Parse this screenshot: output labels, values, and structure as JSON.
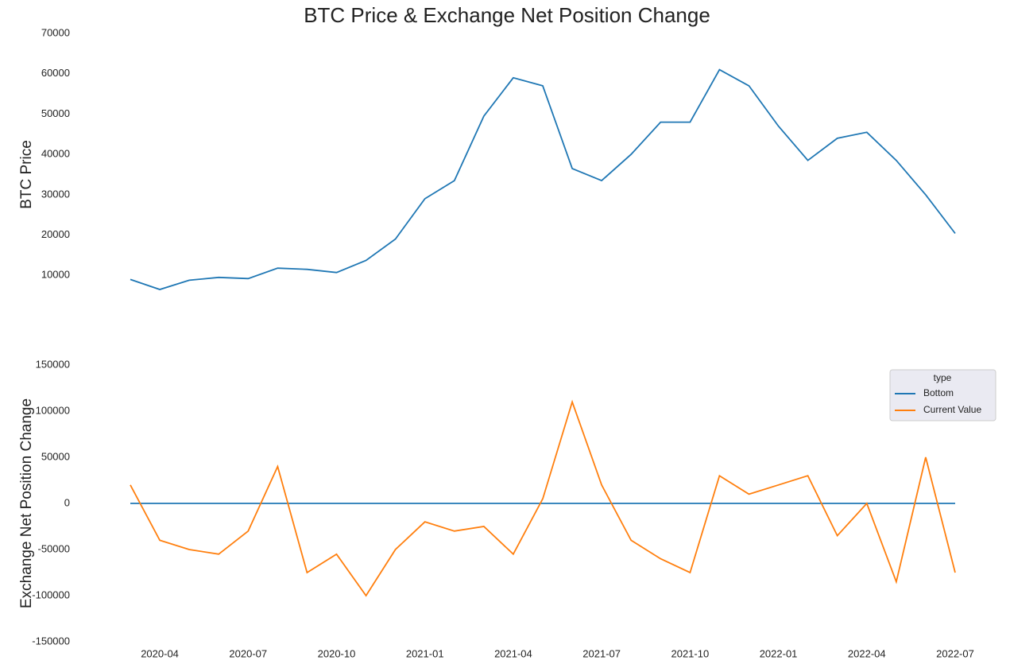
{
  "title": "BTC Price & Exchange Net Position Change",
  "chart_data": [
    {
      "type": "line",
      "ylabel": "BTC  Price",
      "x": [
        "2020-03",
        "2020-04",
        "2020-05",
        "2020-06",
        "2020-07",
        "2020-08",
        "2020-09",
        "2020-10",
        "2020-11",
        "2020-12",
        "2021-01",
        "2021-02",
        "2021-03",
        "2021-04",
        "2021-05",
        "2021-06",
        "2021-07",
        "2021-08",
        "2021-09",
        "2021-10",
        "2021-11",
        "2021-12",
        "2022-01",
        "2022-02",
        "2022-03",
        "2022-04",
        "2022-05",
        "2022-06",
        "2022-07"
      ],
      "series": [
        {
          "name": "BTC Price",
          "color": "#1f77b4",
          "values": [
            9000,
            6500,
            8800,
            9500,
            9200,
            11800,
            11500,
            10700,
            13700,
            19000,
            29000,
            33500,
            49500,
            59000,
            57000,
            36500,
            33500,
            40000,
            48000,
            48000,
            61000,
            57000,
            47000,
            38500,
            44000,
            45500,
            38500,
            30000,
            20400
          ]
        }
      ],
      "ylim": [
        0,
        70000
      ],
      "yticks": [
        10000,
        20000,
        30000,
        40000,
        50000,
        60000,
        70000
      ]
    },
    {
      "type": "line",
      "ylabel": "Exchange Net Position Change",
      "x": [
        "2020-03",
        "2020-04",
        "2020-05",
        "2020-06",
        "2020-07",
        "2020-08",
        "2020-09",
        "2020-10",
        "2020-11",
        "2020-12",
        "2021-01",
        "2021-02",
        "2021-03",
        "2021-04",
        "2021-05",
        "2021-06",
        "2021-07",
        "2021-08",
        "2021-09",
        "2021-10",
        "2021-11",
        "2021-12",
        "2022-01",
        "2022-02",
        "2022-03",
        "2022-04",
        "2022-05",
        "2022-06",
        "2022-07"
      ],
      "legend_title": "type",
      "legend": "upper right",
      "series": [
        {
          "name": "Bottom",
          "color": "#1f77b4",
          "values": [
            0,
            0,
            0,
            0,
            0,
            0,
            0,
            0,
            0,
            0,
            0,
            0,
            0,
            0,
            0,
            0,
            0,
            0,
            0,
            0,
            0,
            0,
            0,
            0,
            0,
            0,
            0,
            0,
            0
          ]
        },
        {
          "name": "Current Value",
          "color": "#ff7f0e",
          "values": [
            20000,
            -40000,
            -50000,
            -55000,
            -30000,
            40000,
            -75000,
            -55000,
            -100000,
            -50000,
            -20000,
            -30000,
            -25000,
            -55000,
            5000,
            110000,
            20000,
            -40000,
            -60000,
            -75000,
            30000,
            10000,
            20000,
            30000,
            -35000,
            0,
            -85000,
            50000,
            -75000
          ]
        }
      ],
      "ylim": [
        -150000,
        150000
      ],
      "yticks": [
        -150000,
        -100000,
        -50000,
        0,
        50000,
        100000,
        150000
      ],
      "xticks": [
        "2020-04",
        "2020-07",
        "2020-10",
        "2021-01",
        "2021-04",
        "2021-07",
        "2021-10",
        "2022-01",
        "2022-04",
        "2022-07"
      ]
    }
  ]
}
